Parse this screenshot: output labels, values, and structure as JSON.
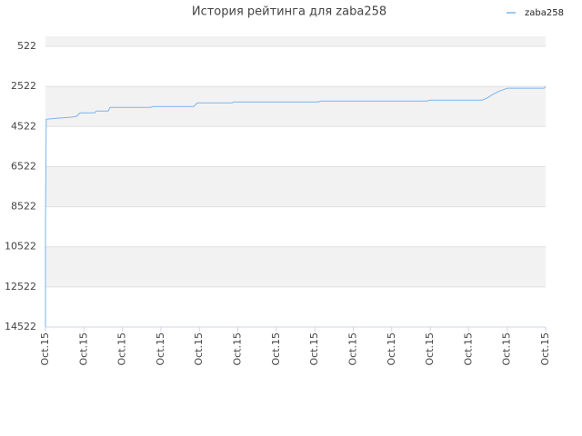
{
  "chart_data": {
    "type": "line",
    "title": "История рейтинга для zaba258",
    "xlim": [
      0,
      13
    ],
    "xticks": [
      {
        "value": 0,
        "label": "Oct.15"
      },
      {
        "value": 1,
        "label": "Oct.15"
      },
      {
        "value": 2,
        "label": "Oct.15"
      },
      {
        "value": 3,
        "label": "Oct.15"
      },
      {
        "value": 4,
        "label": "Oct.15"
      },
      {
        "value": 5,
        "label": "Oct.15"
      },
      {
        "value": 6,
        "label": "Oct.15"
      },
      {
        "value": 7,
        "label": "Oct.15"
      },
      {
        "value": 8,
        "label": "Oct.15"
      },
      {
        "value": 9,
        "label": "Oct.15"
      },
      {
        "value": 10,
        "label": "Oct.15"
      },
      {
        "value": 11,
        "label": "Oct.15"
      },
      {
        "value": 12,
        "label": "Oct.15"
      },
      {
        "value": 13,
        "label": "Oct.15"
      }
    ],
    "ylim": [
      14522,
      22
    ],
    "yticks": [
      522,
      2522,
      4522,
      6522,
      8522,
      10522,
      12522,
      14522
    ],
    "grid": true,
    "legend": "top-right",
    "series": [
      {
        "name": "zaba258",
        "color": "#7cb5ec",
        "x": [
          0,
          0,
          0.02,
          0.28,
          0.61,
          0.8,
          0.9,
          1.28,
          1.32,
          1.63,
          1.68,
          2.74,
          2.79,
          3.85,
          3.95,
          4.85,
          4.89,
          7.09,
          7.16,
          9.93,
          9.98,
          11.35,
          11.47,
          11.58,
          11.75,
          11.87,
          12.01,
          12.96,
          13
        ],
        "values": [
          14522,
          9340,
          4158,
          4113,
          4068,
          4022,
          3840,
          3840,
          3749,
          3749,
          3568,
          3568,
          3522,
          3522,
          3340,
          3340,
          3295,
          3295,
          3249,
          3249,
          3204,
          3204,
          3113,
          2977,
          2795,
          2704,
          2613,
          2613,
          2522
        ]
      }
    ]
  }
}
